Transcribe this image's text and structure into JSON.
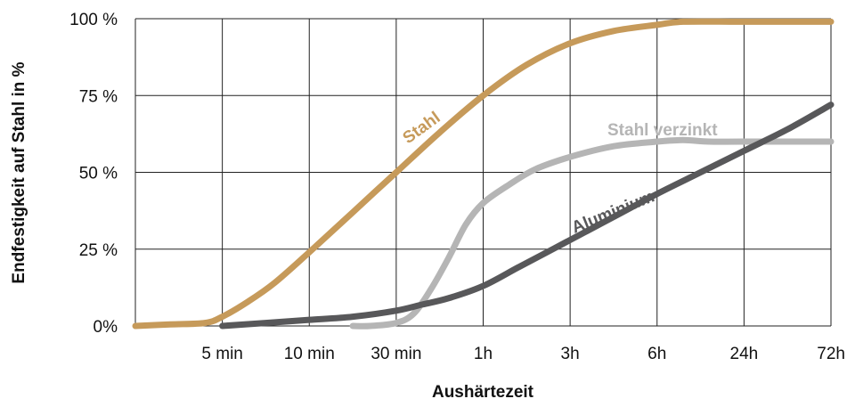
{
  "chart_data": {
    "type": "line",
    "title": "",
    "xlabel": "Aushärtezeit",
    "ylabel": "Endfestigkeit auf Stahl in %",
    "categories": [
      "",
      "5 min",
      "10 min",
      "30 min",
      "1h",
      "3h",
      "6h",
      "24h",
      "72h"
    ],
    "y_ticks": [
      "0%",
      "25 %",
      "50 %",
      "75 %",
      "100 %"
    ],
    "ylim": [
      0,
      100
    ],
    "grid": true,
    "legend": "none",
    "series": [
      {
        "name": "Stahl",
        "color": "#C69A5A",
        "x": [
          0,
          0.4,
          0.8,
          1.0,
          1.3,
          1.6,
          2.0,
          2.5,
          3.0,
          3.5,
          4.0,
          4.5,
          5.0,
          5.5,
          6.0,
          6.3,
          7.0,
          8.0
        ],
        "y": [
          0,
          0.5,
          1,
          3,
          8,
          14,
          24,
          37,
          50,
          63,
          75,
          85,
          92,
          96,
          98,
          99,
          99,
          99
        ]
      },
      {
        "name": "Stahl verzinkt",
        "color": "#B5B5B5",
        "x": [
          2.5,
          2.7,
          3.0,
          3.2,
          3.4,
          3.6,
          3.8,
          4.0,
          4.3,
          4.6,
          5.0,
          5.5,
          6.0,
          6.3,
          6.6,
          7.0,
          8.0
        ],
        "y": [
          0,
          0,
          1,
          4,
          12,
          22,
          33,
          40,
          46,
          51,
          55,
          58.5,
          60,
          60.5,
          60,
          60,
          60
        ]
      },
      {
        "name": "Aluminium",
        "color": "#58585A",
        "x": [
          1.0,
          1.5,
          2.0,
          2.5,
          3.0,
          3.3,
          3.6,
          4.0,
          4.4,
          4.8,
          5.2,
          5.6,
          6.0,
          6.5,
          7.0,
          7.5,
          8.0
        ],
        "y": [
          0,
          1,
          2,
          3,
          5,
          7,
          9,
          13,
          19,
          25,
          31,
          37,
          43,
          50,
          57,
          64,
          72
        ]
      }
    ]
  }
}
